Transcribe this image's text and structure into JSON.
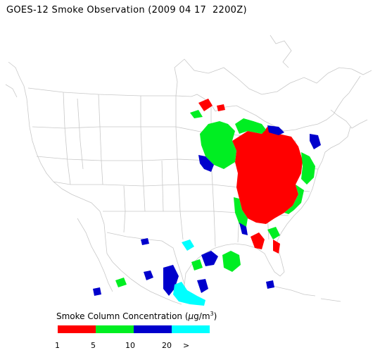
{
  "title": "GOES-12 Smoke Observation (2009 04 17  2200Z)",
  "legend": {
    "title_prefix": "Smoke Column Concentration (",
    "unit_mu": "μ",
    "unit_rest": "g/m",
    "unit_sup": "3",
    "title_suffix": ")",
    "bins": [
      {
        "color": "#ff0000"
      },
      {
        "color": "#00ee22"
      },
      {
        "color": "#0000cc"
      },
      {
        "color": "#00ffff"
      }
    ],
    "ticks": [
      "1",
      "5",
      "10",
      "20",
      ">"
    ]
  },
  "colors": {
    "boundary": "#c8c8c8",
    "smoke_low": "#ff0000",
    "smoke_mid": "#00ee22",
    "smoke_high": "#0000cc",
    "smoke_max": "#00ffff"
  }
}
